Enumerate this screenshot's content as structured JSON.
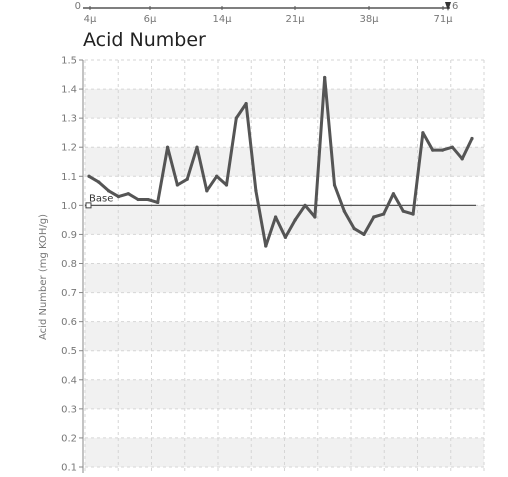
{
  "chart_data": {
    "type": "line",
    "title": "Acid Number",
    "ylabel": "Acid Number (mg KOH/g)",
    "ylim": [
      0.1,
      1.5
    ],
    "yticks": [
      "0.1",
      "0.2",
      "0.3",
      "0.4",
      "0.5",
      "0.6",
      "0.7",
      "0.8",
      "0.9",
      "1.0",
      "1.1",
      "1.2",
      "1.3",
      "1.4",
      "1.5"
    ],
    "grid": true,
    "baseline": {
      "label": "Base",
      "value": 1.0
    },
    "series": [
      {
        "values": [
          1.1,
          1.08,
          1.05,
          1.03,
          1.04,
          1.02,
          1.02,
          1.01,
          1.2,
          1.07,
          1.09,
          1.2,
          1.05,
          1.1,
          1.07,
          1.3,
          1.35,
          1.05,
          0.86,
          0.96,
          0.89,
          0.95,
          1.0,
          0.96,
          1.44,
          1.07,
          0.98,
          0.92,
          0.9,
          0.96,
          0.97,
          1.04,
          0.98,
          0.97,
          1.25,
          1.19,
          1.19,
          1.2,
          1.16,
          1.23
        ]
      }
    ]
  },
  "top_axis": {
    "left_value": "0",
    "right_value": "6",
    "ticks": [
      "4μ",
      "6μ",
      "14μ",
      "21μ",
      "38μ",
      "71μ"
    ],
    "track_color": "#333333"
  },
  "colors": {
    "line": "#555555",
    "baseline": "#555555",
    "band": "#f1f1f1",
    "grid": "#d6d6d6",
    "axis": "#888888"
  }
}
